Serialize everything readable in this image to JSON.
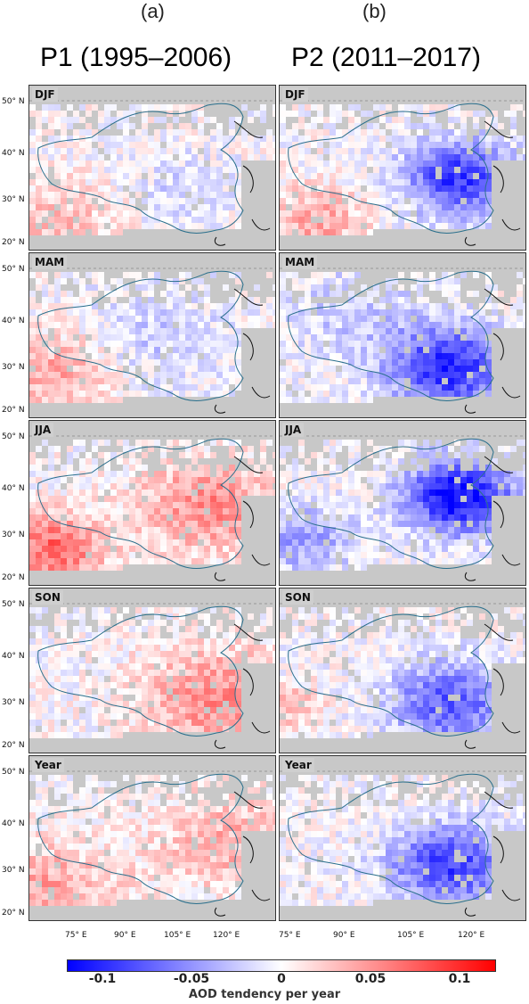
{
  "columns": [
    {
      "letter": "(a)",
      "title": "P1 (1995–2006)"
    },
    {
      "letter": "(b)",
      "title": "P2 (2011–2017)"
    }
  ],
  "seasons": [
    "DJF",
    "MAM",
    "JJA",
    "SON",
    "Year"
  ],
  "lat_labels": [
    "50° N",
    "40° N",
    "30° N",
    "20° N"
  ],
  "lon_labels": [
    "75° E",
    "90° E",
    "105° E",
    "120° E"
  ],
  "colorbar": {
    "label": "AOD tendency per year",
    "ticks": [
      "-0.1",
      "-0.05",
      "0",
      "0.05",
      "0.1"
    ],
    "min": -0.12,
    "max": 0.12,
    "colors": {
      "negative": "#0000ff",
      "zero": "#ffffff",
      "positive": "#ff0000",
      "missing": "#c8c8c8"
    }
  }
}
